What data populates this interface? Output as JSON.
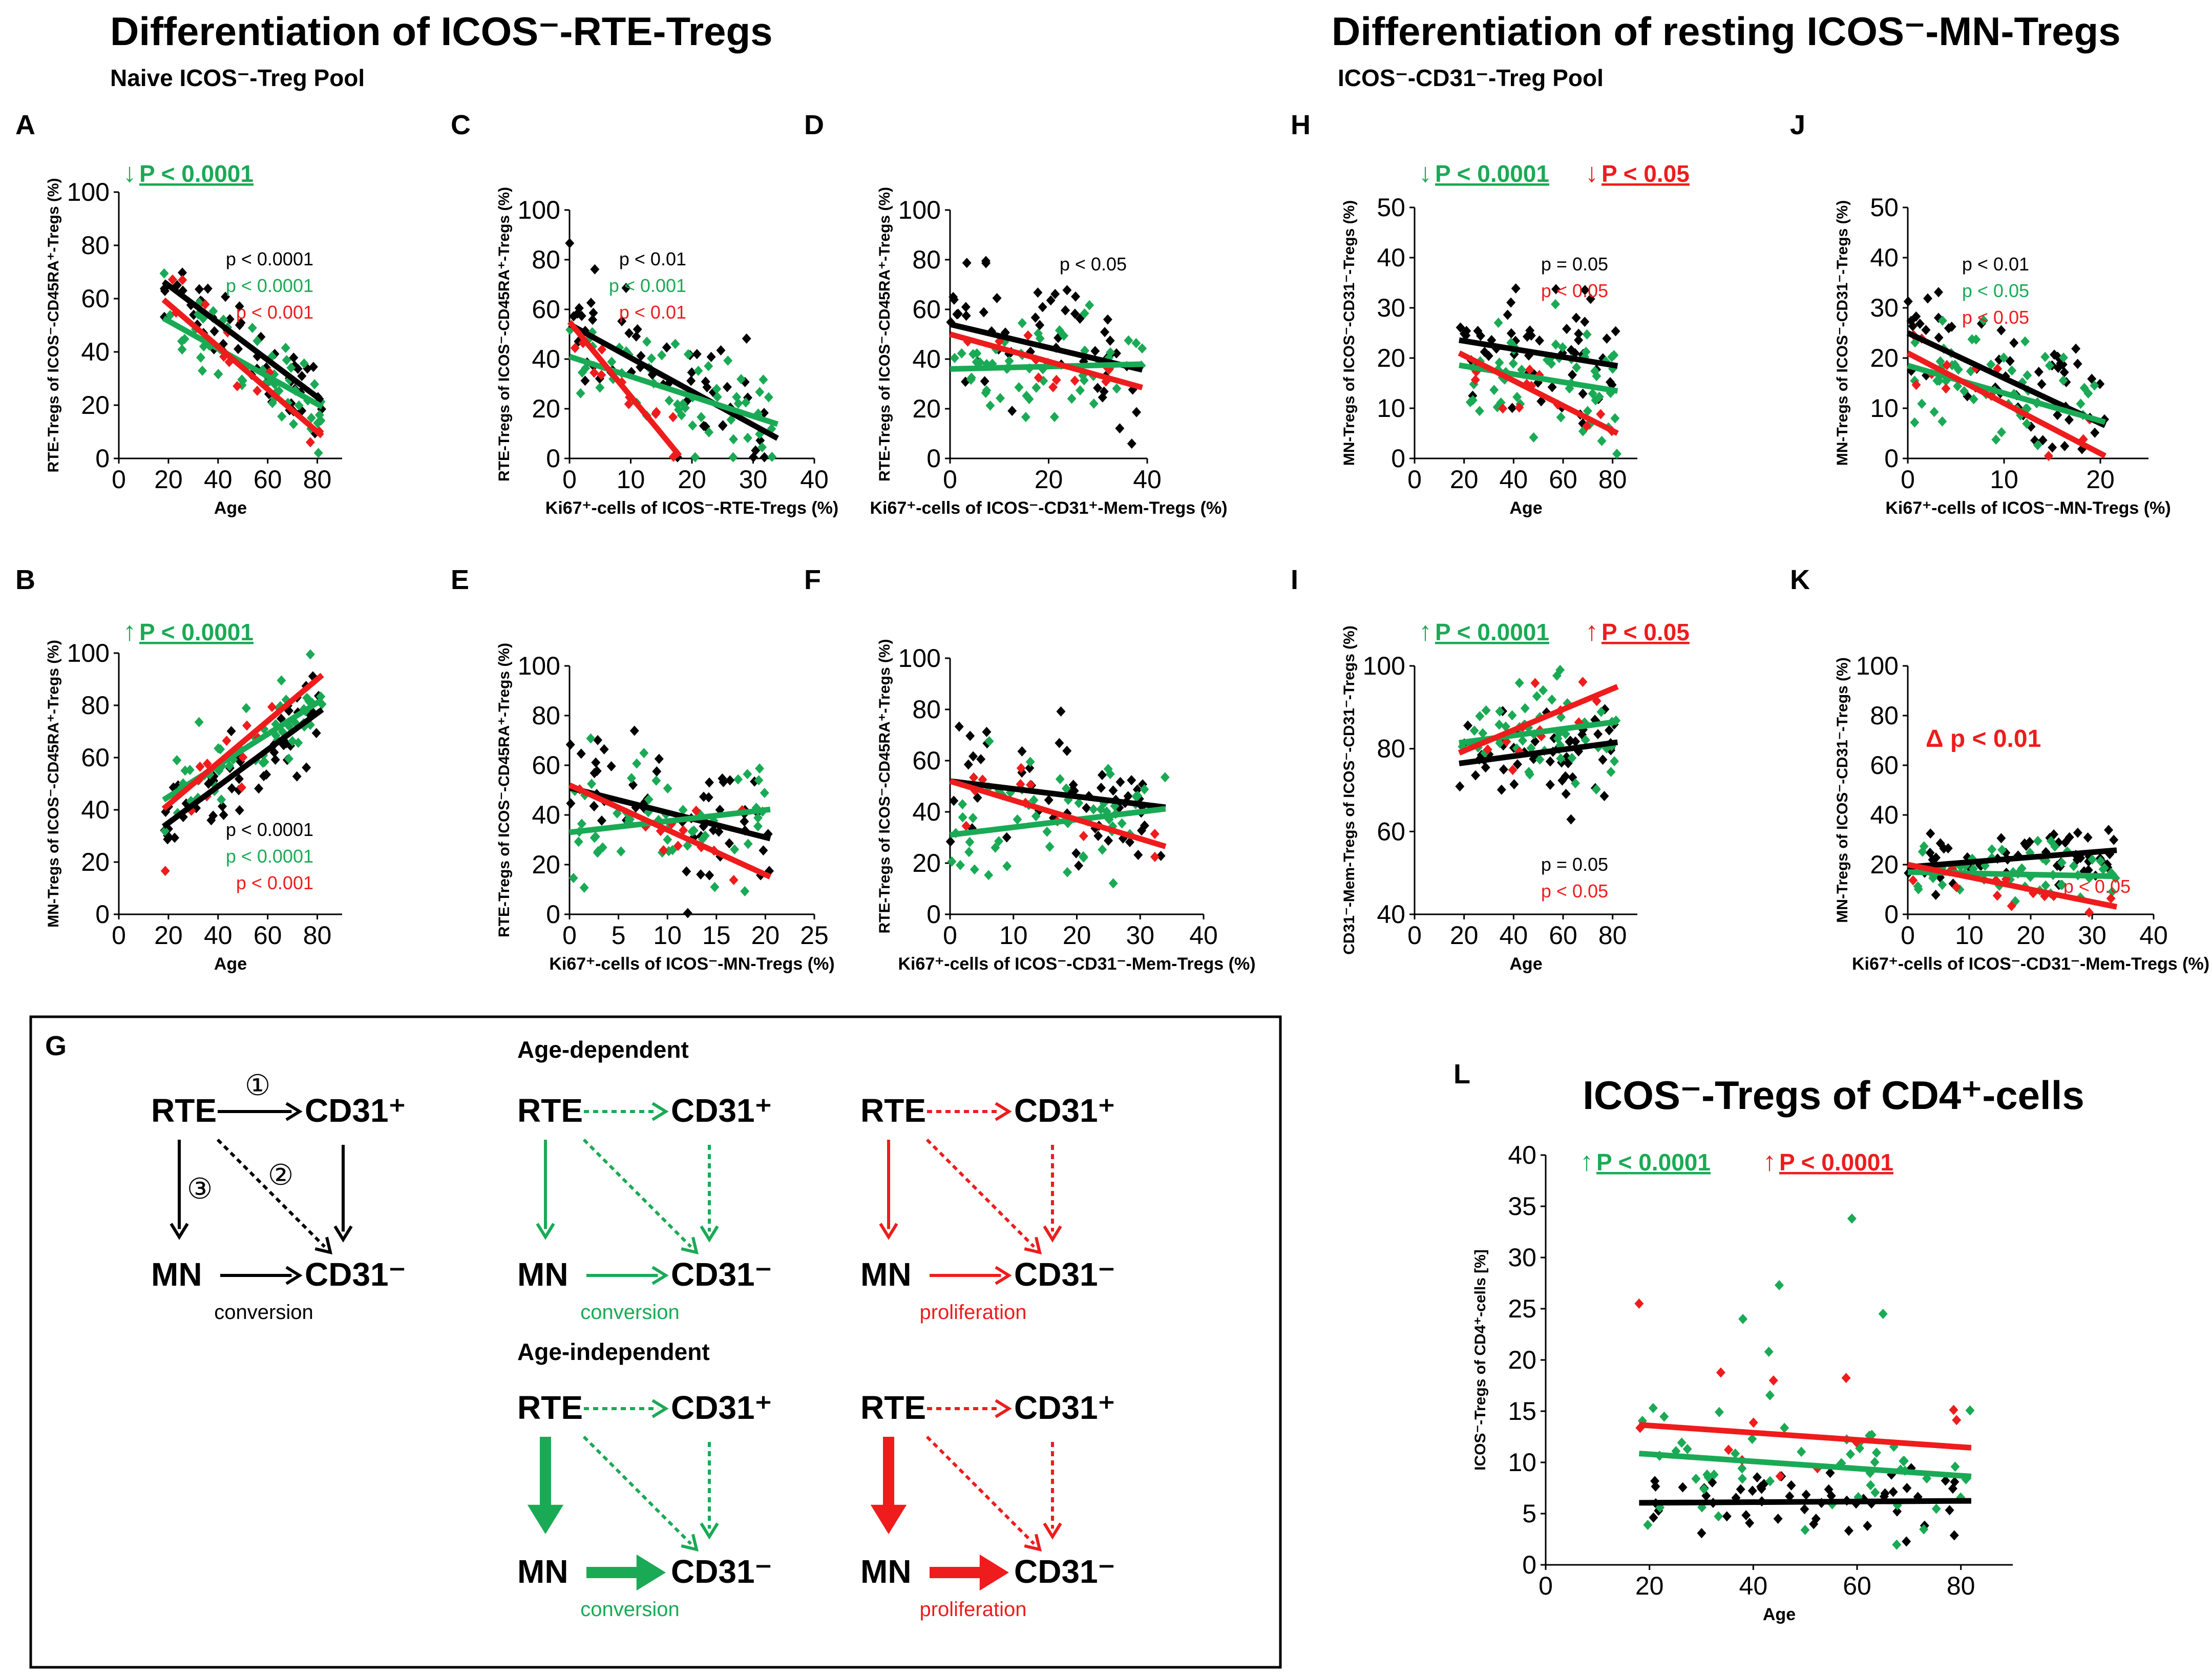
{
  "titles": {
    "left": "Differentiation of ICOS⁻-RTE-Tregs",
    "left_sub": "Naive ICOS⁻-Treg Pool",
    "right": "Differentiation of resting ICOS⁻-MN-Tregs",
    "right_sub": "ICOS⁻-CD31⁻-Treg Pool"
  },
  "colors": {
    "all": "#000000",
    "age_dep": "#1aaa55",
    "prolif": "#ee1c1c"
  },
  "chart_data": [
    {
      "id": "A",
      "type": "scatter",
      "xlabel": "Age",
      "ylabel": "RTE-Tregs of ICOS⁻-CD45RA⁺-Tregs (%)",
      "xlim": [
        0,
        90
      ],
      "ylim": [
        0,
        100
      ],
      "xticks": [
        0,
        20,
        40,
        60,
        80
      ],
      "yticks": [
        0,
        20,
        40,
        60,
        80,
        100
      ],
      "series": [
        {
          "name": "all",
          "color": "#000000",
          "slope": -0.7,
          "intercept": 79,
          "n": 55,
          "sd": 8,
          "xrange": [
            18,
            82
          ]
        },
        {
          "name": "age-dependent",
          "color": "#1aaa55",
          "slope": -0.52,
          "intercept": 62,
          "n": 55,
          "sd": 8,
          "xrange": [
            18,
            82
          ]
        },
        {
          "name": "proliferation",
          "color": "#ee1c1c",
          "slope": -0.8,
          "intercept": 74,
          "n": 12,
          "sd": 7,
          "xrange": [
            18,
            82
          ]
        }
      ],
      "pvalues": [
        {
          "text": "p < 0.0001",
          "color": "#000000"
        },
        {
          "text": "p < 0.0001",
          "color": "#1aaa55"
        },
        {
          "text": "p < 0.001",
          "color": "#ee1c1c"
        }
      ],
      "sig": [
        {
          "arrow": "↓",
          "text": "P < 0.0001",
          "color": "#1aaa55"
        }
      ]
    },
    {
      "id": "B",
      "type": "scatter",
      "xlabel": "Age",
      "ylabel": "MN-Tregs of ICOS⁻-CD45RA⁺-Tregs (%)",
      "xlim": [
        0,
        90
      ],
      "ylim": [
        0,
        100
      ],
      "xticks": [
        0,
        20,
        40,
        60,
        80
      ],
      "yticks": [
        0,
        20,
        40,
        60,
        80,
        100
      ],
      "series": [
        {
          "name": "all",
          "color": "#000000",
          "slope": 0.7,
          "intercept": 21,
          "n": 55,
          "sd": 8,
          "xrange": [
            18,
            82
          ]
        },
        {
          "name": "age-dependent",
          "color": "#1aaa55",
          "slope": 0.6,
          "intercept": 33,
          "n": 55,
          "sd": 8,
          "xrange": [
            18,
            82
          ]
        },
        {
          "name": "proliferation",
          "color": "#ee1c1c",
          "slope": 0.8,
          "intercept": 26,
          "n": 12,
          "sd": 7,
          "xrange": [
            18,
            82
          ]
        }
      ],
      "pvalues": [
        {
          "text": "p < 0.0001",
          "color": "#000000"
        },
        {
          "text": "p < 0.0001",
          "color": "#1aaa55"
        },
        {
          "text": "p < 0.001",
          "color": "#ee1c1c"
        }
      ],
      "sig": [
        {
          "arrow": "↑",
          "text": "P < 0.0001",
          "color": "#1aaa55"
        }
      ]
    },
    {
      "id": "C",
      "type": "scatter",
      "xlabel": "Ki67⁺-cells of ICOS⁻-RTE-Tregs (%)",
      "ylabel": "RTE-Tregs of ICOS⁻-CD45RA⁺-Tregs (%)",
      "xlim": [
        0,
        40
      ],
      "ylim": [
        0,
        100
      ],
      "xticks": [
        0,
        10,
        20,
        30,
        40
      ],
      "yticks": [
        0,
        20,
        40,
        60,
        80,
        100
      ],
      "series": [
        {
          "name": "all",
          "color": "#000000",
          "slope": -1.35,
          "intercept": 54,
          "n": 55,
          "sd": 12,
          "xrange": [
            0,
            34
          ]
        },
        {
          "name": "age-dependent",
          "color": "#1aaa55",
          "slope": -0.8,
          "intercept": 41,
          "n": 55,
          "sd": 11,
          "xrange": [
            0,
            34
          ]
        },
        {
          "name": "proliferation",
          "color": "#ee1c1c",
          "slope": -3.0,
          "intercept": 55,
          "n": 12,
          "sd": 8,
          "xrange": [
            0,
            18
          ]
        }
      ],
      "pvalues": [
        {
          "text": "p < 0.01",
          "color": "#000000"
        },
        {
          "text": "p < 0.001",
          "color": "#1aaa55"
        },
        {
          "text": "p < 0.01",
          "color": "#ee1c1c"
        }
      ],
      "sig": []
    },
    {
      "id": "D",
      "type": "scatter",
      "xlabel": "Ki67⁺-cells of ICOS⁻-CD31⁺-Mem-Tregs (%)",
      "ylabel": "RTE-Tregs of ICOS⁻-CD45RA⁺-Tregs (%)",
      "xlim": [
        0,
        40
      ],
      "ylim": [
        0,
        100
      ],
      "xticks": [
        0,
        20,
        40
      ],
      "yticks": [
        0,
        20,
        40,
        60,
        80,
        100
      ],
      "series": [
        {
          "name": "all",
          "color": "#000000",
          "slope": -0.47,
          "intercept": 54,
          "n": 55,
          "sd": 12,
          "xrange": [
            0,
            39
          ]
        },
        {
          "name": "age-dependent",
          "color": "#1aaa55",
          "slope": 0.05,
          "intercept": 36,
          "n": 55,
          "sd": 11,
          "xrange": [
            0,
            39
          ]
        },
        {
          "name": "proliferation",
          "color": "#ee1c1c",
          "slope": -0.55,
          "intercept": 50,
          "n": 12,
          "sd": 8,
          "xrange": [
            0,
            39
          ]
        }
      ],
      "pvalues": [
        {
          "text": "p < 0.05",
          "color": "#000000"
        }
      ],
      "sig": []
    },
    {
      "id": "E",
      "type": "scatter",
      "xlabel": "Ki67⁺-cells of ICOS⁻-MN-Tregs (%)",
      "ylabel": "RTE-Tregs of ICOS⁻-CD45RA⁺-Tregs (%)",
      "xlim": [
        0,
        25
      ],
      "ylim": [
        0,
        100
      ],
      "xticks": [
        0,
        5,
        10,
        15,
        20,
        25
      ],
      "yticks": [
        0,
        20,
        40,
        60,
        80,
        100
      ],
      "series": [
        {
          "name": "all",
          "color": "#000000",
          "slope": -1.0,
          "intercept": 51,
          "n": 55,
          "sd": 14,
          "xrange": [
            0,
            20.5
          ]
        },
        {
          "name": "age-dependent",
          "color": "#1aaa55",
          "slope": 0.45,
          "intercept": 33,
          "n": 55,
          "sd": 12,
          "xrange": [
            0,
            20.5
          ]
        },
        {
          "name": "proliferation",
          "color": "#ee1c1c",
          "slope": -1.8,
          "intercept": 52,
          "n": 12,
          "sd": 9,
          "xrange": [
            0,
            20.5
          ]
        }
      ],
      "pvalues": [],
      "sig": []
    },
    {
      "id": "F",
      "type": "scatter",
      "xlabel": "Ki67⁺-cells of ICOS⁻-CD31⁻-Mem-Tregs (%)",
      "ylabel": "RTE-Tregs of ICOS⁻-CD45RA⁺-Tregs (%)",
      "xlim": [
        0,
        40
      ],
      "ylim": [
        0,
        100
      ],
      "xticks": [
        0,
        10,
        20,
        30,
        40
      ],
      "yticks": [
        0,
        20,
        40,
        60,
        80,
        100
      ],
      "series": [
        {
          "name": "all",
          "color": "#000000",
          "slope": -0.3,
          "intercept": 52,
          "n": 55,
          "sd": 13,
          "xrange": [
            0,
            34
          ]
        },
        {
          "name": "age-dependent",
          "color": "#1aaa55",
          "slope": 0.3,
          "intercept": 31,
          "n": 55,
          "sd": 11,
          "xrange": [
            0,
            34
          ]
        },
        {
          "name": "proliferation",
          "color": "#ee1c1c",
          "slope": -0.75,
          "intercept": 52,
          "n": 12,
          "sd": 9,
          "xrange": [
            0,
            34
          ]
        }
      ],
      "pvalues": [],
      "sig": []
    },
    {
      "id": "H",
      "type": "scatter",
      "xlabel": "Age",
      "ylabel": "MN-Tregs of ICOS⁻-CD31⁻-Tregs (%)",
      "xlim": [
        0,
        90
      ],
      "ylim": [
        0,
        50
      ],
      "xticks": [
        0,
        20,
        40,
        60,
        80
      ],
      "yticks": [
        0,
        10,
        20,
        30,
        40,
        50
      ],
      "series": [
        {
          "name": "all",
          "color": "#000000",
          "slope": -0.08,
          "intercept": 25,
          "n": 55,
          "sd": 6,
          "xrange": [
            18,
            82
          ]
        },
        {
          "name": "age-dependent",
          "color": "#1aaa55",
          "slope": -0.08,
          "intercept": 20,
          "n": 55,
          "sd": 6,
          "xrange": [
            18,
            82
          ]
        },
        {
          "name": "proliferation",
          "color": "#ee1c1c",
          "slope": -0.25,
          "intercept": 25.5,
          "n": 12,
          "sd": 5,
          "xrange": [
            18,
            82
          ]
        }
      ],
      "pvalues": [
        {
          "text": "p = 0.05",
          "color": "#000000"
        },
        {
          "text": "p < 0.05",
          "color": "#ee1c1c"
        }
      ],
      "sig": [
        {
          "arrow": "↓",
          "text": "P < 0.0001",
          "color": "#1aaa55"
        },
        {
          "arrow": "↓",
          "text": "P < 0.05",
          "color": "#ee1c1c"
        }
      ]
    },
    {
      "id": "I",
      "type": "scatter",
      "xlabel": "Age",
      "ylabel": "CD31⁻-Mem-Tregs of ICOS⁻-CD31⁻-Tregs (%)",
      "xlim": [
        0,
        90
      ],
      "ylim": [
        40,
        100
      ],
      "xticks": [
        0,
        20,
        40,
        60,
        80
      ],
      "yticks": [
        40,
        60,
        80,
        100
      ],
      "series": [
        {
          "name": "all",
          "color": "#000000",
          "slope": 0.08,
          "intercept": 75,
          "n": 55,
          "sd": 6,
          "xrange": [
            18,
            82
          ]
        },
        {
          "name": "age-dependent",
          "color": "#1aaa55",
          "slope": 0.08,
          "intercept": 80,
          "n": 55,
          "sd": 6,
          "xrange": [
            18,
            82
          ]
        },
        {
          "name": "proliferation",
          "color": "#ee1c1c",
          "slope": 0.25,
          "intercept": 74.5,
          "n": 12,
          "sd": 5,
          "xrange": [
            18,
            82
          ]
        }
      ],
      "pvalues": [
        {
          "text": "p = 0.05",
          "color": "#000000"
        },
        {
          "text": "p < 0.05",
          "color": "#ee1c1c"
        }
      ],
      "sig": [
        {
          "arrow": "↑",
          "text": "P < 0.0001",
          "color": "#1aaa55"
        },
        {
          "arrow": "↑",
          "text": "P < 0.05",
          "color": "#ee1c1c"
        }
      ]
    },
    {
      "id": "J",
      "type": "scatter",
      "xlabel": "Ki67⁺-cells of ICOS⁻-MN-Tregs (%)",
      "ylabel": "MN-Tregs of ICOS⁻-CD31⁻-Tregs (%)",
      "xlim": [
        0,
        25
      ],
      "ylim": [
        0,
        50
      ],
      "xticks": [
        0,
        10,
        20
      ],
      "yticks": [
        0,
        10,
        20,
        30,
        40,
        50
      ],
      "series": [
        {
          "name": "all",
          "color": "#000000",
          "slope": -0.9,
          "intercept": 25,
          "n": 55,
          "sd": 7,
          "xrange": [
            0,
            20.5
          ]
        },
        {
          "name": "age-dependent",
          "color": "#1aaa55",
          "slope": -0.55,
          "intercept": 18.5,
          "n": 55,
          "sd": 6,
          "xrange": [
            0,
            20.5
          ]
        },
        {
          "name": "proliferation",
          "color": "#ee1c1c",
          "slope": -1.0,
          "intercept": 21,
          "n": 12,
          "sd": 5,
          "xrange": [
            0,
            20.5
          ]
        }
      ],
      "pvalues": [
        {
          "text": "p < 0.01",
          "color": "#000000"
        },
        {
          "text": "p < 0.05",
          "color": "#1aaa55"
        },
        {
          "text": "p < 0.05",
          "color": "#ee1c1c"
        }
      ],
      "sig": []
    },
    {
      "id": "K",
      "type": "scatter",
      "xlabel": "Ki67⁺-cells of ICOS⁻-CD31⁻-Mem-Tregs (%)",
      "ylabel": "MN-Tregs of ICOS⁻-CD31⁻-Tregs (%)",
      "xlim": [
        0,
        40
      ],
      "ylim": [
        0,
        100
      ],
      "xticks": [
        0,
        10,
        20,
        30,
        40
      ],
      "yticks": [
        0,
        20,
        40,
        60,
        80,
        100
      ],
      "series": [
        {
          "name": "all",
          "color": "#000000",
          "slope": 0.2,
          "intercept": 19,
          "n": 55,
          "sd": 6,
          "xrange": [
            0,
            34
          ]
        },
        {
          "name": "age-dependent",
          "color": "#1aaa55",
          "slope": -0.05,
          "intercept": 17,
          "n": 55,
          "sd": 6,
          "xrange": [
            0,
            34
          ]
        },
        {
          "name": "proliferation",
          "color": "#ee1c1c",
          "slope": -0.5,
          "intercept": 20,
          "n": 12,
          "sd": 5,
          "xrange": [
            0,
            34
          ]
        }
      ],
      "pvalues": [
        {
          "text": "p < 0.05",
          "color": "#ee1c1c"
        }
      ],
      "sig": [],
      "note": {
        "text": "Δ p < 0.01",
        "color": "#ee1c1c"
      }
    },
    {
      "id": "L",
      "type": "scatter",
      "title": "ICOS⁻-Tregs of CD4⁺-cells",
      "xlabel": "Age",
      "ylabel": "ICOS⁻-Tregs of CD4⁺-cells [%]",
      "xlim": [
        0,
        90
      ],
      "ylim": [
        0,
        40
      ],
      "xticks": [
        0,
        20,
        40,
        60,
        80
      ],
      "yticks": [
        0,
        5,
        10,
        15,
        20,
        25,
        30,
        35,
        40
      ],
      "series": [
        {
          "name": "all",
          "color": "#000000",
          "slope": 0.003,
          "intercept": 6,
          "n": 55,
          "sd": 1.5,
          "xrange": [
            18,
            82
          ]
        },
        {
          "name": "age-dependent",
          "color": "#1aaa55",
          "slope": -0.035,
          "intercept": 11.5,
          "n": 55,
          "sd": 3,
          "xrange": [
            18,
            82
          ]
        },
        {
          "name": "proliferation",
          "color": "#ee1c1c",
          "slope": -0.035,
          "intercept": 14.3,
          "n": 12,
          "sd": 4,
          "xrange": [
            18,
            82
          ]
        }
      ],
      "outliers": [
        [
          18,
          25.5
        ],
        [
          59,
          33.8
        ],
        [
          45,
          27.3
        ],
        [
          65,
          24.5
        ],
        [
          38,
          24
        ],
        [
          43,
          20.8
        ]
      ],
      "pvalues": [],
      "sig": [
        {
          "arrow": "↑",
          "text": "P < 0.0001",
          "color": "#1aaa55"
        },
        {
          "arrow": "↑",
          "text": "P < 0.0001",
          "color": "#ee1c1c"
        }
      ]
    }
  ],
  "diagram": {
    "label": "G",
    "nodes": {
      "rte": "RTE",
      "cd31p": "CD31⁺",
      "mn": "MN",
      "cd31m": "CD31⁻"
    },
    "pathway_nums": [
      "①",
      "②",
      "③"
    ],
    "age_dependent": "Age-dependent",
    "age_independent": "Age-independent",
    "captions": {
      "conversion": "conversion",
      "proliferation": "proliferation"
    }
  }
}
